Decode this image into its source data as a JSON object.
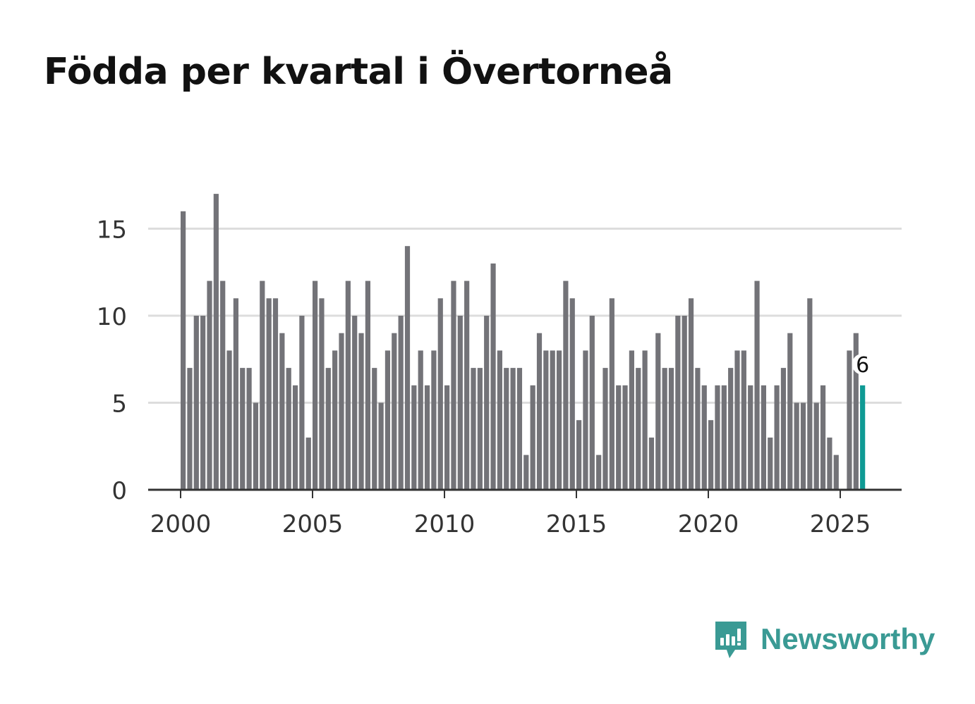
{
  "chart_data": {
    "type": "bar",
    "title": "Födda per kvartal i Övertorneå",
    "xlabel": "",
    "ylabel": "",
    "ylim": [
      0,
      17
    ],
    "y_ticks": [
      0,
      5,
      10,
      15
    ],
    "x_ticks": [
      2000,
      2005,
      2010,
      2015,
      2020,
      2025
    ],
    "x_start": 2000,
    "periods_per_year": 4,
    "values": [
      16,
      7,
      10,
      10,
      12,
      17,
      12,
      8,
      11,
      7,
      7,
      5,
      12,
      11,
      11,
      9,
      7,
      6,
      10,
      3,
      12,
      11,
      7,
      8,
      9,
      12,
      10,
      9,
      12,
      7,
      5,
      8,
      9,
      10,
      14,
      6,
      8,
      6,
      8,
      11,
      6,
      12,
      10,
      12,
      7,
      7,
      10,
      13,
      8,
      7,
      7,
      7,
      2,
      6,
      9,
      8,
      8,
      8,
      12,
      11,
      4,
      8,
      10,
      2,
      7,
      11,
      6,
      6,
      8,
      7,
      8,
      3,
      9,
      7,
      7,
      10,
      10,
      11,
      7,
      6,
      4,
      6,
      6,
      7,
      8,
      8,
      6,
      12,
      6,
      3,
      6,
      7,
      9,
      5,
      5,
      11,
      5,
      6,
      3,
      2,
      0,
      8,
      9,
      6
    ],
    "highlight_label": "6",
    "colors": {
      "bar": "#737378",
      "highlight": "#0f9a94",
      "grid": "#dddddd",
      "axis": "#333333",
      "tick_text": "#333333"
    }
  },
  "brand": {
    "name": "Newsworthy",
    "icon": "newsworthy-logo-icon",
    "color": "#3a9a94"
  }
}
